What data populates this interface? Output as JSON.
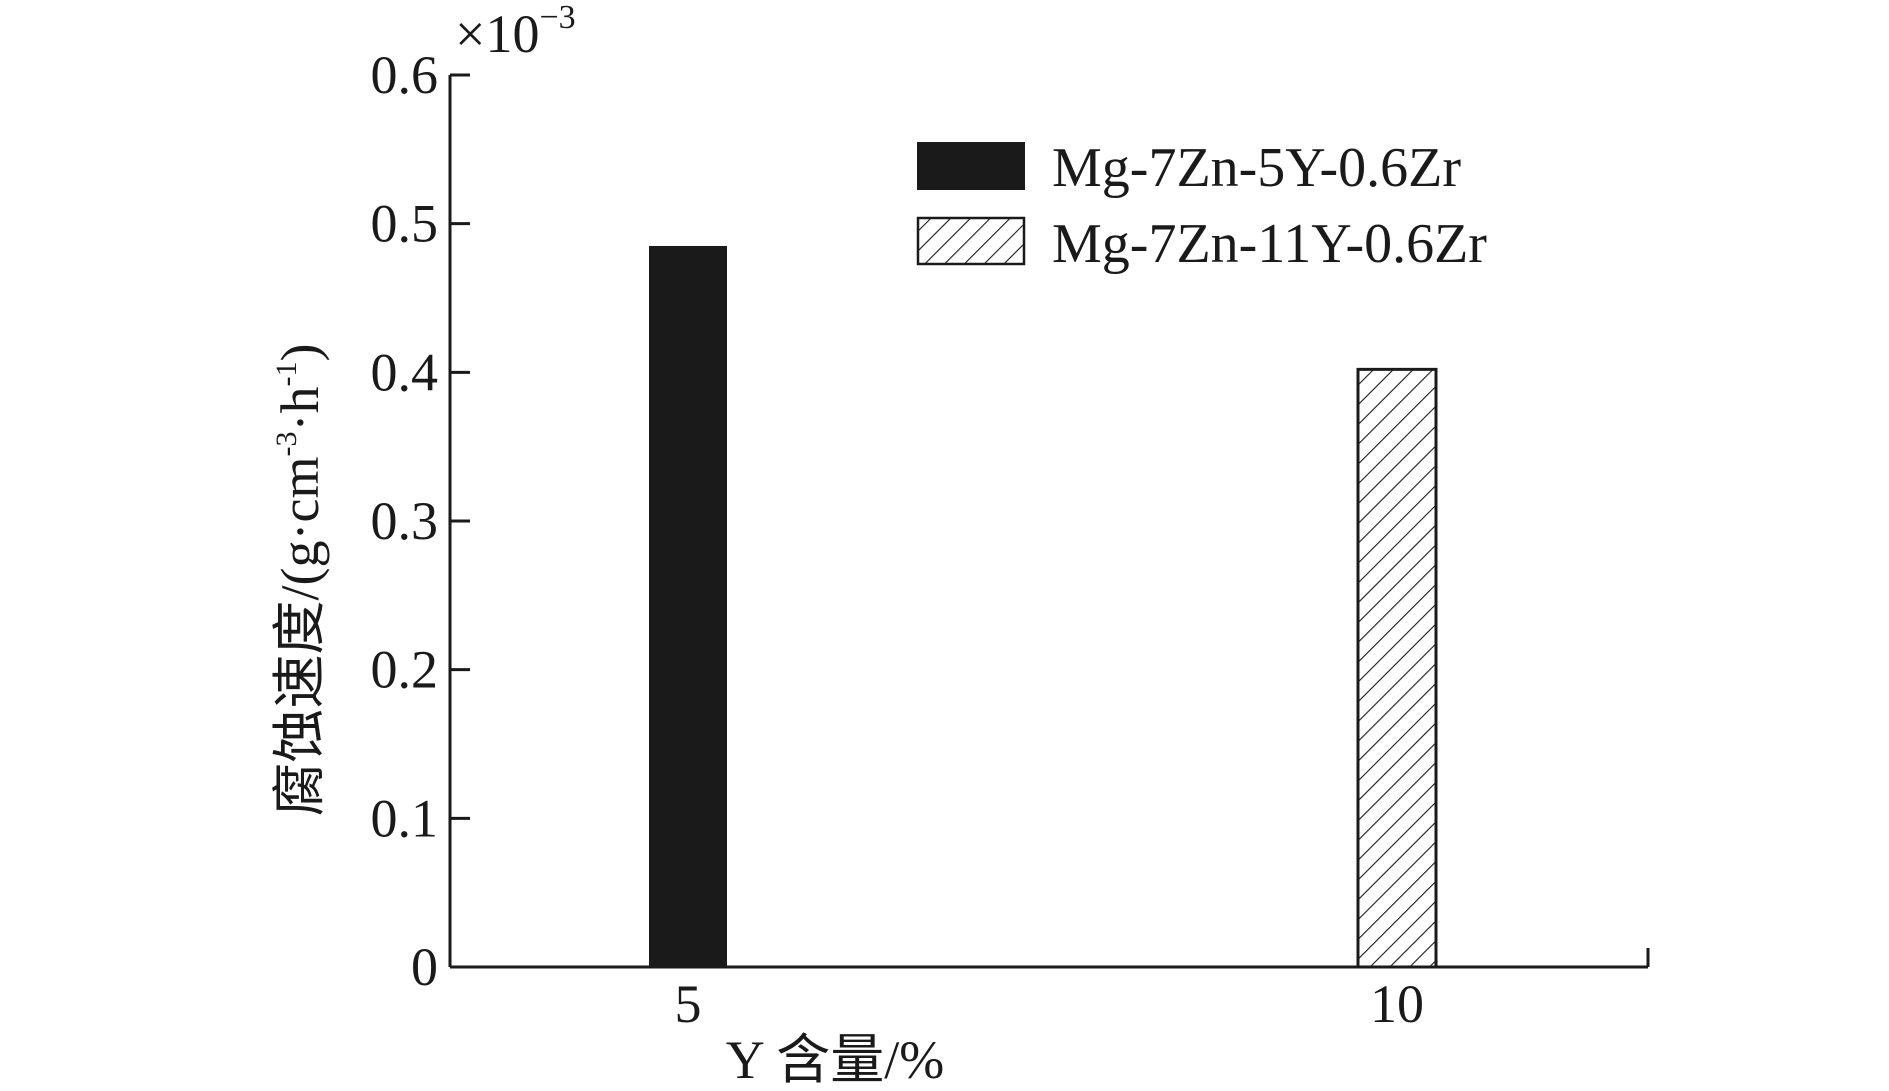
{
  "chart_data": {
    "type": "bar",
    "categories": [
      "5",
      "10"
    ],
    "series": [
      {
        "name": "Mg-7Zn-5Y-0.6Zr",
        "category": "5",
        "value": 0.485,
        "fill": "solid",
        "color": "#1a1a1a"
      },
      {
        "name": "Mg-7Zn-11Y-0.6Zr",
        "category": "10",
        "value": 0.402,
        "fill": "hatch",
        "color": "#1a1a1a"
      }
    ],
    "xlabel": "Y 含量/%",
    "ylabel": {
      "main": "腐蚀速度/(g·cm",
      "sup1": "-3",
      "mid": "·h",
      "sup2": "-1",
      "end": ")"
    },
    "ylim": [
      0,
      0.6
    ],
    "yticks": [
      "0",
      "0.1",
      "0.2",
      "0.3",
      "0.4",
      "0.5",
      "0.6"
    ],
    "exponent": {
      "base": "×10",
      "sup": "−3"
    },
    "legend_position": "top-right",
    "grid": false
  }
}
